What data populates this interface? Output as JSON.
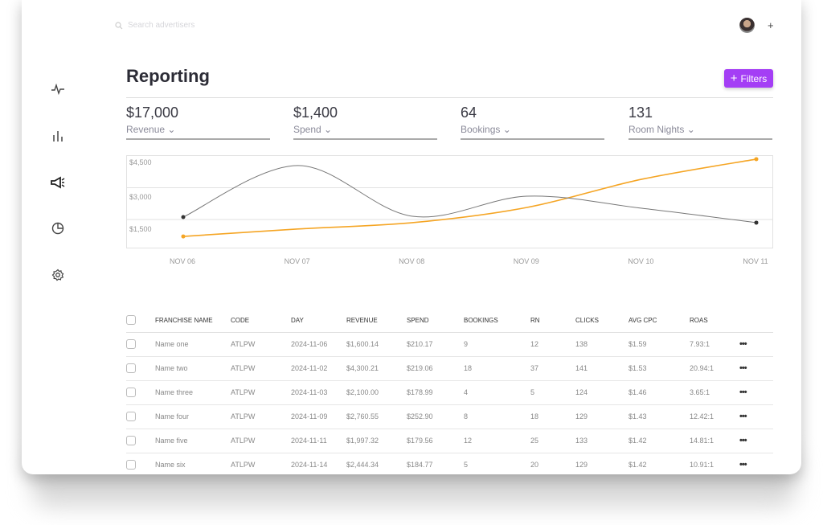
{
  "header": {
    "search_placeholder": "Search advertisers",
    "add_label": "+"
  },
  "sidebar": {
    "icons": [
      "activity-icon",
      "bar-chart-icon",
      "megaphone-icon",
      "pie-chart-icon",
      "settings-icon"
    ]
  },
  "page": {
    "title": "Reporting",
    "filters_label": "Filters",
    "accent": "#a43ef5"
  },
  "kpis": [
    {
      "value": "$17,000",
      "label": "Revenue"
    },
    {
      "value": "$1,400",
      "label": "Spend"
    },
    {
      "value": "64",
      "label": "Bookings"
    },
    {
      "value": "131",
      "label": "Room Nights"
    }
  ],
  "chart_data": {
    "type": "line",
    "categories": [
      "NOV 06",
      "NOV 07",
      "NOV 08",
      "NOV 09",
      "NOV 10",
      "NOV 11"
    ],
    "y_tick_labels": [
      "$4,500",
      "$3,000",
      "$1,500"
    ],
    "ylim": [
      0,
      4500
    ],
    "grid": true,
    "series": [
      {
        "color": "#f5a524",
        "values": [
          700,
          1050,
          1350,
          2070,
          3400,
          4350
        ]
      },
      {
        "color": "#777777",
        "values": [
          1615,
          4050,
          1650,
          2600,
          2030,
          1350
        ]
      }
    ]
  },
  "table": {
    "columns": [
      "FRANCHISE NAME",
      "CODE",
      "DAY",
      "REVENUE",
      "SPEND",
      "BOOKINGS",
      "RN",
      "CLICKS",
      "AVG CPC",
      "ROAS"
    ],
    "rows": [
      [
        "Name one",
        "ATLPW",
        "2024-11-06",
        "$1,600.14",
        "$210.17",
        "9",
        "12",
        "138",
        "$1.59",
        "7.93:1"
      ],
      [
        "Name two",
        "ATLPW",
        "2024-11-02",
        "$4,300.21",
        "$219.06",
        "18",
        "37",
        "141",
        "$1.53",
        "20.94:1"
      ],
      [
        "Name three",
        "ATLPW",
        "2024-11-03",
        "$2,100.00",
        "$178.99",
        "4",
        "5",
        "124",
        "$1.46",
        "3.65:1"
      ],
      [
        "Name four",
        "ATLPW",
        "2024-11-09",
        "$2,760.55",
        "$252.90",
        "8",
        "18",
        "129",
        "$1.43",
        "12.42:1"
      ],
      [
        "Name five",
        "ATLPW",
        "2024-11-11",
        "$1,997.32",
        "$179.56",
        "12",
        "25",
        "133",
        "$1.42",
        "14.81:1"
      ],
      [
        "Name six",
        "ATLPW",
        "2024-11-14",
        "$2,444.34",
        "$184.77",
        "5",
        "20",
        "129",
        "$1.42",
        "10.91:1"
      ]
    ],
    "row_menu": "•••"
  }
}
